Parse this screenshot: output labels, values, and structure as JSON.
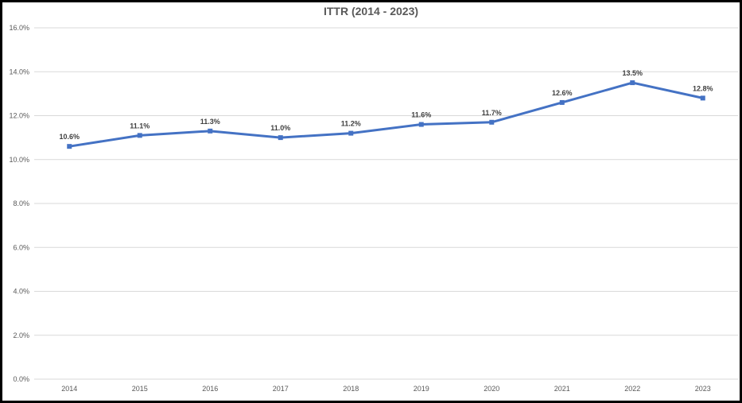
{
  "chart_data": {
    "type": "line",
    "title": "ITTR (2014 - 2023)",
    "xlabel": "",
    "ylabel": "",
    "categories": [
      "2014",
      "2015",
      "2016",
      "2017",
      "2018",
      "2019",
      "2020",
      "2021",
      "2022",
      "2023"
    ],
    "series": [
      {
        "values": [
          10.6,
          11.1,
          11.3,
          11.0,
          11.2,
          11.6,
          11.7,
          12.6,
          13.5,
          12.8
        ],
        "data_labels": [
          "10.6%",
          "11.1%",
          "11.3%",
          "11.0%",
          "11.2%",
          "11.6%",
          "11.7%",
          "12.6%",
          "13.5%",
          "12.8%"
        ],
        "color": "#4472C4",
        "marker": "square"
      }
    ],
    "ylim": [
      0,
      16
    ],
    "y_ticks": [
      "0.0%",
      "2.0%",
      "4.0%",
      "6.0%",
      "8.0%",
      "10.0%",
      "12.0%",
      "14.0%",
      "16.0%"
    ],
    "grid": "horizontal",
    "legend": "none"
  },
  "colors": {
    "line": "#4472C4",
    "grid": "#D9D9D9",
    "border": "#000000"
  }
}
